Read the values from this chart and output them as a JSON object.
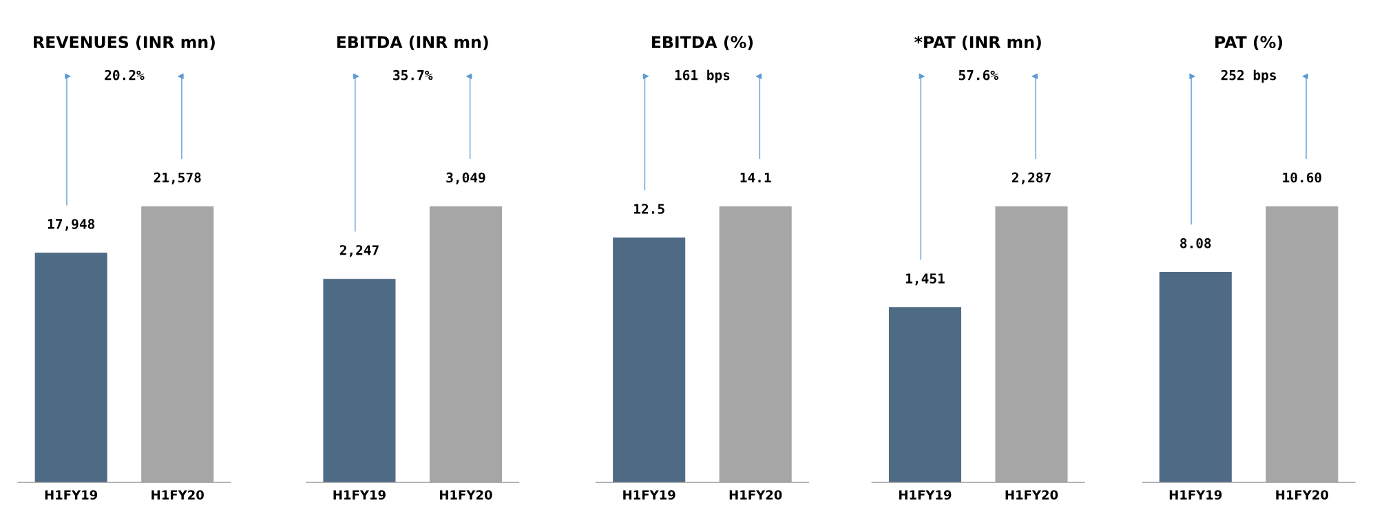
{
  "chart_data": [
    {
      "type": "bar",
      "title": "REVENUES (INR mn)",
      "categories": [
        "H1FY19",
        "H1FY20"
      ],
      "values": [
        17948,
        21578
      ],
      "colors": [
        "#4f6a85",
        "#a6a6a6"
      ],
      "value_labels": [
        "17,948",
        "21,578"
      ],
      "tick_labels": "x",
      "annotations": [
        "20.2%"
      ]
    },
    {
      "type": "bar",
      "title": "EBITDA (INR mn)",
      "categories": [
        "H1FY19",
        "H1FY20"
      ],
      "values": [
        2247,
        3049
      ],
      "colors": [
        "#4f6a85",
        "#a6a6a6"
      ],
      "value_labels": [
        "2,247",
        "3,049"
      ],
      "tick_labels": "x",
      "annotations": [
        "35.7%"
      ]
    },
    {
      "type": "bar",
      "title": "EBITDA (%)",
      "categories": [
        "H1FY19",
        "H1FY20"
      ],
      "values": [
        12.5,
        14.1
      ],
      "colors": [
        "#4f6a85",
        "#a6a6a6"
      ],
      "value_labels": [
        "12.5",
        "14.1"
      ],
      "tick_labels": "x",
      "annotations": [
        "161 bps"
      ]
    },
    {
      "type": "bar",
      "title": "*PAT (INR mn)",
      "categories": [
        "H1FY19",
        "H1FY20"
      ],
      "values": [
        1451,
        2287
      ],
      "colors": [
        "#4f6a85",
        "#a6a6a6"
      ],
      "value_labels": [
        "1,451",
        "2,287"
      ],
      "tick_labels": "x",
      "annotations": [
        "57.6%"
      ]
    },
    {
      "type": "bar",
      "title": "PAT (%)",
      "categories": [
        "H1FY19",
        "H1FY20"
      ],
      "values": [
        8.08,
        10.6
      ],
      "colors": [
        "#4f6a85",
        "#a6a6a6"
      ],
      "value_labels": [
        "8.08",
        "10.60"
      ],
      "tick_labels": "x",
      "annotations": [
        "252 bps"
      ]
    }
  ]
}
